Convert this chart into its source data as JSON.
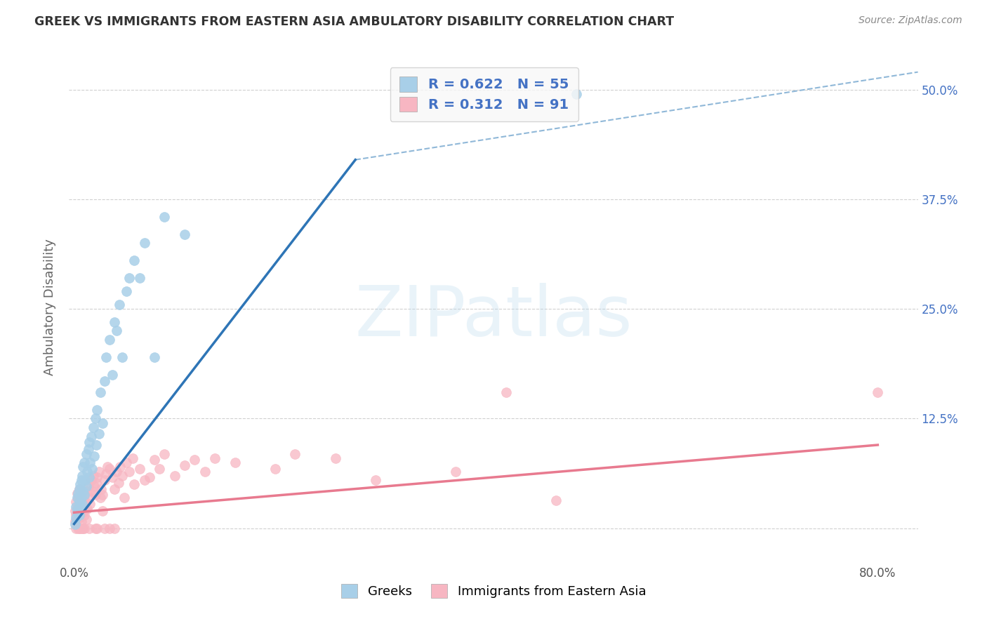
{
  "title": "GREEK VS IMMIGRANTS FROM EASTERN ASIA AMBULATORY DISABILITY CORRELATION CHART",
  "source": "Source: ZipAtlas.com",
  "ylabel": "Ambulatory Disability",
  "watermark": "ZIPatlas",
  "legend_blue_R": "0.622",
  "legend_blue_N": "55",
  "legend_pink_R": "0.312",
  "legend_pink_N": "91",
  "legend_label_blue": "Greeks",
  "legend_label_pink": "Immigrants from Eastern Asia",
  "xlim": [
    -0.005,
    0.84
  ],
  "ylim": [
    -0.04,
    0.545
  ],
  "blue_color": "#a8cfe8",
  "pink_color": "#f7b6c2",
  "blue_line_color": "#2e75b6",
  "pink_line_color": "#e87a8f",
  "dashed_line_color": "#90b8d8",
  "background_color": "#ffffff",
  "grid_color": "#d0d0d0",
  "title_color": "#333333",
  "right_tick_color": "#4472c4",
  "blue_scatter": [
    [
      0.001,
      0.005
    ],
    [
      0.002,
      0.012
    ],
    [
      0.002,
      0.025
    ],
    [
      0.003,
      0.018
    ],
    [
      0.003,
      0.035
    ],
    [
      0.004,
      0.022
    ],
    [
      0.004,
      0.04
    ],
    [
      0.005,
      0.015
    ],
    [
      0.005,
      0.03
    ],
    [
      0.005,
      0.045
    ],
    [
      0.006,
      0.025
    ],
    [
      0.006,
      0.05
    ],
    [
      0.007,
      0.035
    ],
    [
      0.007,
      0.055
    ],
    [
      0.008,
      0.028
    ],
    [
      0.008,
      0.06
    ],
    [
      0.009,
      0.042
    ],
    [
      0.009,
      0.07
    ],
    [
      0.01,
      0.038
    ],
    [
      0.01,
      0.075
    ],
    [
      0.011,
      0.055
    ],
    [
      0.012,
      0.048
    ],
    [
      0.012,
      0.085
    ],
    [
      0.013,
      0.065
    ],
    [
      0.014,
      0.09
    ],
    [
      0.015,
      0.058
    ],
    [
      0.015,
      0.098
    ],
    [
      0.016,
      0.075
    ],
    [
      0.017,
      0.105
    ],
    [
      0.018,
      0.068
    ],
    [
      0.019,
      0.115
    ],
    [
      0.02,
      0.082
    ],
    [
      0.021,
      0.125
    ],
    [
      0.022,
      0.095
    ],
    [
      0.023,
      0.135
    ],
    [
      0.025,
      0.108
    ],
    [
      0.026,
      0.155
    ],
    [
      0.028,
      0.12
    ],
    [
      0.03,
      0.168
    ],
    [
      0.032,
      0.195
    ],
    [
      0.035,
      0.215
    ],
    [
      0.038,
      0.175
    ],
    [
      0.04,
      0.235
    ],
    [
      0.042,
      0.225
    ],
    [
      0.045,
      0.255
    ],
    [
      0.048,
      0.195
    ],
    [
      0.052,
      0.27
    ],
    [
      0.055,
      0.285
    ],
    [
      0.06,
      0.305
    ],
    [
      0.065,
      0.285
    ],
    [
      0.07,
      0.325
    ],
    [
      0.08,
      0.195
    ],
    [
      0.09,
      0.355
    ],
    [
      0.11,
      0.335
    ],
    [
      0.5,
      0.495
    ]
  ],
  "pink_scatter": [
    [
      0.001,
      0.02
    ],
    [
      0.001,
      0.008
    ],
    [
      0.002,
      0.015
    ],
    [
      0.002,
      0.0
    ],
    [
      0.002,
      0.03
    ],
    [
      0.003,
      0.01
    ],
    [
      0.003,
      0.025
    ],
    [
      0.003,
      0.04
    ],
    [
      0.004,
      0.018
    ],
    [
      0.004,
      0.0
    ],
    [
      0.004,
      0.035
    ],
    [
      0.005,
      0.022
    ],
    [
      0.005,
      0.012
    ],
    [
      0.005,
      0.045
    ],
    [
      0.005,
      0.0
    ],
    [
      0.006,
      0.015
    ],
    [
      0.006,
      0.03
    ],
    [
      0.006,
      0.0
    ],
    [
      0.007,
      0.02
    ],
    [
      0.007,
      0.035
    ],
    [
      0.007,
      0.008
    ],
    [
      0.008,
      0.025
    ],
    [
      0.008,
      0.042
    ],
    [
      0.008,
      0.0
    ],
    [
      0.009,
      0.018
    ],
    [
      0.009,
      0.028
    ],
    [
      0.009,
      0.0
    ],
    [
      0.01,
      0.032
    ],
    [
      0.01,
      0.015
    ],
    [
      0.01,
      0.0
    ],
    [
      0.011,
      0.038
    ],
    [
      0.011,
      0.022
    ],
    [
      0.012,
      0.042
    ],
    [
      0.012,
      0.01
    ],
    [
      0.013,
      0.022
    ],
    [
      0.014,
      0.048
    ],
    [
      0.015,
      0.035
    ],
    [
      0.015,
      0.0
    ],
    [
      0.016,
      0.028
    ],
    [
      0.017,
      0.055
    ],
    [
      0.018,
      0.042
    ],
    [
      0.019,
      0.06
    ],
    [
      0.02,
      0.048
    ],
    [
      0.021,
      0.038
    ],
    [
      0.021,
      0.0
    ],
    [
      0.022,
      0.052
    ],
    [
      0.023,
      0.058
    ],
    [
      0.023,
      0.0
    ],
    [
      0.025,
      0.065
    ],
    [
      0.026,
      0.035
    ],
    [
      0.027,
      0.045
    ],
    [
      0.028,
      0.038
    ],
    [
      0.028,
      0.02
    ],
    [
      0.03,
      0.055
    ],
    [
      0.03,
      0.0
    ],
    [
      0.032,
      0.062
    ],
    [
      0.033,
      0.07
    ],
    [
      0.035,
      0.068
    ],
    [
      0.035,
      0.0
    ],
    [
      0.038,
      0.058
    ],
    [
      0.04,
      0.045
    ],
    [
      0.04,
      0.0
    ],
    [
      0.042,
      0.065
    ],
    [
      0.044,
      0.052
    ],
    [
      0.046,
      0.07
    ],
    [
      0.048,
      0.06
    ],
    [
      0.05,
      0.035
    ],
    [
      0.052,
      0.075
    ],
    [
      0.055,
      0.065
    ],
    [
      0.058,
      0.08
    ],
    [
      0.06,
      0.05
    ],
    [
      0.065,
      0.068
    ],
    [
      0.07,
      0.055
    ],
    [
      0.075,
      0.058
    ],
    [
      0.08,
      0.078
    ],
    [
      0.085,
      0.068
    ],
    [
      0.09,
      0.085
    ],
    [
      0.1,
      0.06
    ],
    [
      0.11,
      0.072
    ],
    [
      0.12,
      0.078
    ],
    [
      0.13,
      0.065
    ],
    [
      0.14,
      0.08
    ],
    [
      0.16,
      0.075
    ],
    [
      0.2,
      0.068
    ],
    [
      0.22,
      0.085
    ],
    [
      0.26,
      0.08
    ],
    [
      0.3,
      0.055
    ],
    [
      0.38,
      0.065
    ],
    [
      0.43,
      0.155
    ],
    [
      0.48,
      0.032
    ],
    [
      0.8,
      0.155
    ]
  ],
  "blue_line": [
    [
      0.0,
      0.005
    ],
    [
      0.28,
      0.42
    ]
  ],
  "pink_line": [
    [
      0.0,
      0.018
    ],
    [
      0.8,
      0.095
    ]
  ],
  "dashed_line": [
    [
      0.28,
      0.42
    ],
    [
      0.84,
      0.52
    ]
  ]
}
